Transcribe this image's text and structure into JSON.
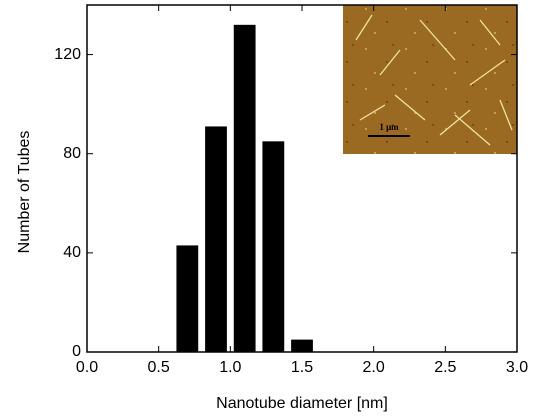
{
  "chart_data": {
    "type": "histogram",
    "x_label": "Nanotube diameter [nm]",
    "y_label": "Number of Tubes",
    "bins": [
      0.6,
      0.8,
      1.0,
      1.2,
      1.4,
      1.6
    ],
    "values": [
      43,
      91,
      132,
      85,
      5
    ],
    "color": "#000000",
    "xlim": [
      0,
      3
    ],
    "ylim": [
      0,
      140
    ],
    "xticks": [
      {
        "value": 0,
        "label": "0.0"
      },
      {
        "value": 0.5,
        "label": "0.5"
      },
      {
        "value": 1,
        "label": "1.0"
      },
      {
        "value": 1.5,
        "label": "1.5"
      },
      {
        "value": 2,
        "label": "2.0"
      },
      {
        "value": 2.5,
        "label": "2.5"
      },
      {
        "value": 3,
        "label": "3.0"
      }
    ],
    "yticks": [
      0,
      40,
      80,
      120
    ],
    "inset_label": "1 μm"
  }
}
